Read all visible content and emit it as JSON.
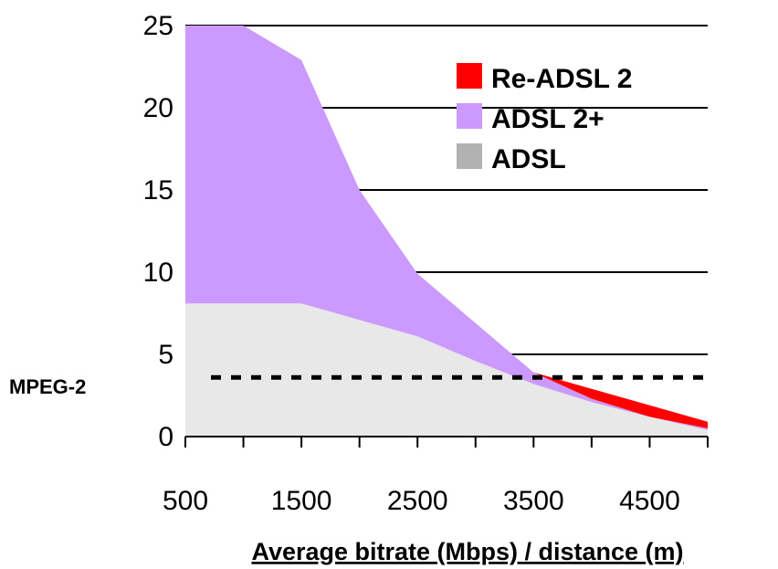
{
  "chart_data": {
    "type": "area",
    "title": "",
    "xlabel": "Average bitrate (Mbps) / distance (m)",
    "ylabel": "",
    "xlim": [
      500,
      5000
    ],
    "ylim": [
      0,
      25
    ],
    "x_tick_labels": [
      "500",
      "1500",
      "2500",
      "3500",
      "4500"
    ],
    "x_ticks": [
      500,
      1000,
      1500,
      2000,
      2500,
      3000,
      3500,
      4000,
      4500,
      5000
    ],
    "y_ticks": [
      0,
      5,
      10,
      15,
      20,
      25
    ],
    "grid": true,
    "legend_position": "top-right",
    "x": [
      500,
      1000,
      1500,
      2000,
      2500,
      3000,
      3500,
      4000,
      4500,
      5000
    ],
    "series": [
      {
        "name": "Re-ADSL 2",
        "color": "#ff0000",
        "values": [
          null,
          null,
          null,
          null,
          null,
          null,
          3.9,
          2.9,
          1.9,
          0.9
        ]
      },
      {
        "name": "ADSL 2+",
        "color": "#cc99ff",
        "values": [
          25.5,
          25.5,
          22.9,
          15.0,
          9.9,
          6.9,
          3.9,
          2.3,
          1.2,
          0.5
        ]
      },
      {
        "name": "ADSL",
        "color": "#e8e8e8",
        "legend_color": "#b2b2b2",
        "values": [
          8.1,
          8.1,
          8.1,
          7.1,
          6.1,
          4.6,
          3.2,
          2.1,
          1.2,
          0.4
        ]
      }
    ],
    "reference_line": {
      "label": "MPEG-2",
      "value": 3.6,
      "style": "dashed"
    }
  }
}
